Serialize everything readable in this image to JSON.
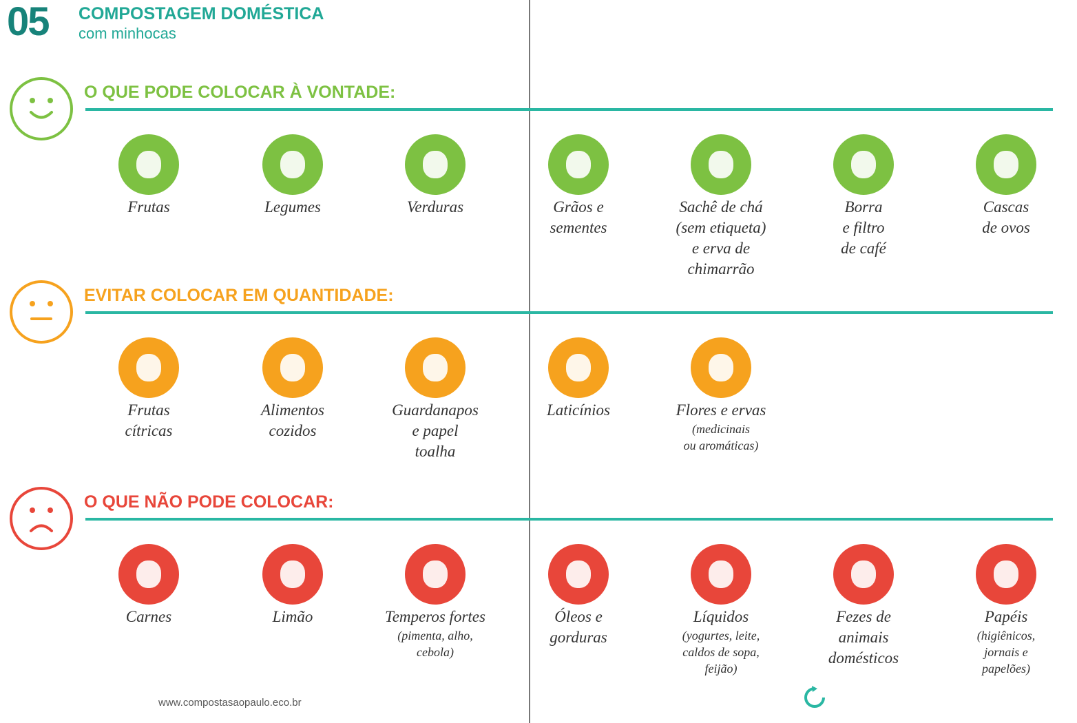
{
  "header": {
    "number": "05",
    "title": "COMPOSTAGEM DOMÉSTICA",
    "subtitle": "com minhocas"
  },
  "sections": [
    {
      "heading": "O QUE PODE COLOCAR À VONTADE:",
      "color": "#7dc142",
      "items": [
        {
          "lines": [
            "Frutas"
          ]
        },
        {
          "lines": [
            "Legumes"
          ]
        },
        {
          "lines": [
            "Verduras"
          ]
        },
        {
          "lines": [
            "Grãos e",
            "sementes"
          ]
        },
        {
          "lines": [
            "Sachê de chá",
            "(sem etiqueta)",
            "e erva de",
            "chimarrão"
          ]
        },
        {
          "lines": [
            "Borra",
            "e filtro",
            "de café"
          ]
        },
        {
          "lines": [
            "Cascas",
            "de ovos"
          ]
        }
      ]
    },
    {
      "heading": "EVITAR COLOCAR EM QUANTIDADE:",
      "color": "#f6a21e",
      "items": [
        {
          "lines": [
            "Frutas",
            "cítricas"
          ]
        },
        {
          "lines": [
            "Alimentos",
            "cozidos"
          ]
        },
        {
          "lines": [
            "Guardanapos",
            "e papel",
            "toalha"
          ]
        },
        {
          "lines": [
            "Laticínios"
          ]
        },
        {
          "lines": [
            "Flores e ervas"
          ],
          "note": [
            "(medicinais",
            "ou aromáticas)"
          ]
        }
      ]
    },
    {
      "heading": "O QUE NÃO PODE COLOCAR:",
      "color": "#e8463a",
      "items": [
        {
          "lines": [
            "Carnes"
          ]
        },
        {
          "lines": [
            "Limão"
          ]
        },
        {
          "lines": [
            "Temperos fortes"
          ],
          "note": [
            "(pimenta, alho,",
            "cebola)"
          ]
        },
        {
          "lines": [
            "Óleos e",
            "gorduras"
          ]
        },
        {
          "lines": [
            "Líquidos"
          ],
          "note": [
            "(yogurtes, leite,",
            "caldos de sopa,",
            "feijão)"
          ]
        },
        {
          "lines": [
            "Fezes de",
            "animais",
            "domésticos"
          ]
        },
        {
          "lines": [
            "Papéis"
          ],
          "note": [
            "(higiênicos,",
            "jornais e",
            "papelões)"
          ]
        }
      ]
    }
  ],
  "footer": {
    "url": "www.compostasaopaulo.eco.br"
  }
}
